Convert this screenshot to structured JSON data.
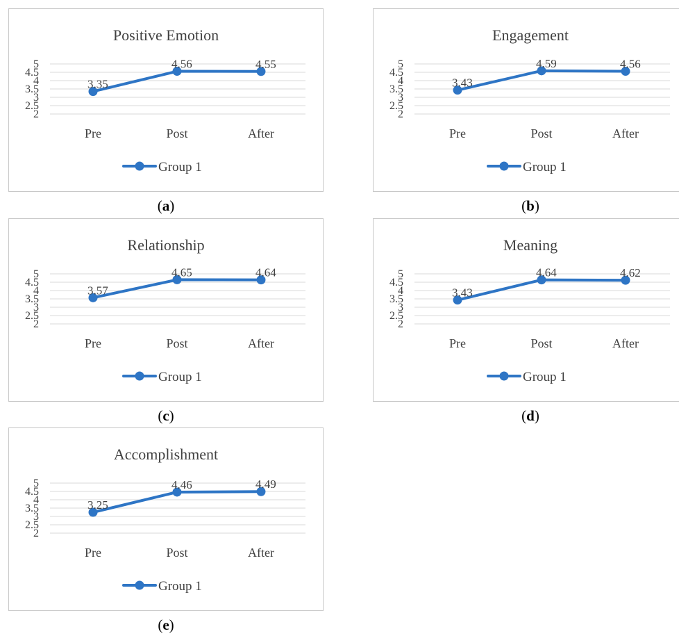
{
  "chart_data": [
    {
      "type": "line",
      "panel_label": "a",
      "title": "Positive Emotion",
      "categories": [
        "Pre",
        "Post",
        "After"
      ],
      "series": [
        {
          "name": "Group 1",
          "values": [
            3.35,
            4.56,
            4.55
          ],
          "color": "#2e75c5"
        }
      ],
      "data_labels": [
        "3.35",
        "4.56",
        "4.55"
      ],
      "y_ticks": [
        "2",
        "2.5",
        "3",
        "3.5",
        "4",
        "4.5",
        "5"
      ],
      "ylim": [
        2,
        5
      ],
      "legend": "bottom",
      "grid": true
    },
    {
      "type": "line",
      "panel_label": "b",
      "title": "Engagement",
      "categories": [
        "Pre",
        "Post",
        "After"
      ],
      "series": [
        {
          "name": "Group 1",
          "values": [
            3.43,
            4.59,
            4.56
          ],
          "color": "#2e75c5"
        }
      ],
      "data_labels": [
        "3.43",
        "4.59",
        "4.56"
      ],
      "y_ticks": [
        "2",
        "2.5",
        "3",
        "3.5",
        "4",
        "4.5",
        "5"
      ],
      "ylim": [
        2,
        5
      ],
      "legend": "bottom",
      "grid": true
    },
    {
      "type": "line",
      "panel_label": "c",
      "title": "Relationship",
      "categories": [
        "Pre",
        "Post",
        "After"
      ],
      "series": [
        {
          "name": "Group 1",
          "values": [
            3.57,
            4.65,
            4.64
          ],
          "color": "#2e75c5"
        }
      ],
      "data_labels": [
        "3.57",
        "4.65",
        "4.64"
      ],
      "y_ticks": [
        "2",
        "2.5",
        "3",
        "3.5",
        "4",
        "4.5",
        "5"
      ],
      "ylim": [
        2,
        5
      ],
      "legend": "bottom",
      "grid": true
    },
    {
      "type": "line",
      "panel_label": "d",
      "title": "Meaning",
      "categories": [
        "Pre",
        "Post",
        "After"
      ],
      "series": [
        {
          "name": "Group 1",
          "values": [
            3.43,
            4.64,
            4.62
          ],
          "color": "#2e75c5"
        }
      ],
      "data_labels": [
        "3.43",
        "4.64",
        "4.62"
      ],
      "y_ticks": [
        "2",
        "2.5",
        "3",
        "3.5",
        "4",
        "4.5",
        "5"
      ],
      "ylim": [
        2,
        5
      ],
      "legend": "bottom",
      "grid": true
    },
    {
      "type": "line",
      "panel_label": "e",
      "title": "Accomplishment",
      "categories": [
        "Pre",
        "Post",
        "After"
      ],
      "series": [
        {
          "name": "Group 1",
          "values": [
            3.25,
            4.46,
            4.49
          ],
          "color": "#2e75c5"
        }
      ],
      "data_labels": [
        "3.25",
        "4.46",
        "4.49"
      ],
      "y_ticks": [
        "2",
        "2.5",
        "3",
        "3.5",
        "4",
        "4.5",
        "5"
      ],
      "ylim": [
        2,
        5
      ],
      "legend": "bottom",
      "grid": true
    }
  ]
}
